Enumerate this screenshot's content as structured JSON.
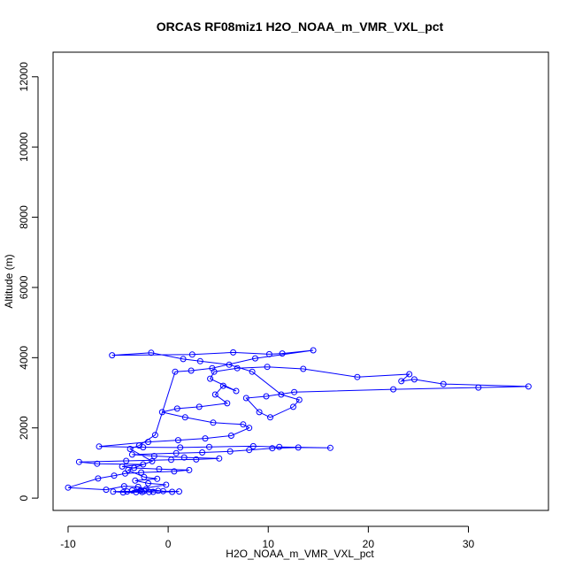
{
  "chart_data": {
    "type": "scatter",
    "title": "ORCAS RF08miz1 H2O_NOAA_m_VMR_VXL_pct",
    "xlabel": "H2O_NOAA_m_VMR_VXL_pct",
    "ylabel": "Altitude (m)",
    "xlim": [
      -11.5,
      38
    ],
    "ylim": [
      -350,
      12700
    ],
    "xticks": [
      -10,
      0,
      10,
      20,
      30
    ],
    "yticks": [
      0,
      2000,
      4000,
      6000,
      8000,
      10000,
      12000
    ],
    "grid": false,
    "colors": {
      "series": "#0000ff",
      "axes": "#000000"
    },
    "series": [
      {
        "marker": "open-circle",
        "connected": true,
        "points": [
          [
            -1.5,
            180
          ],
          [
            -3.2,
            170
          ],
          [
            -2.4,
            200
          ],
          [
            -4.1,
            190
          ],
          [
            -2.8,
            210
          ],
          [
            -3.6,
            220
          ],
          [
            -1.9,
            175
          ],
          [
            0.4,
            180
          ],
          [
            1.1,
            190
          ],
          [
            -0.5,
            200
          ],
          [
            -2.2,
            260
          ],
          [
            -3.0,
            320
          ],
          [
            -4.4,
            340
          ],
          [
            -6.2,
            240
          ],
          [
            -10.0,
            300
          ],
          [
            -7.0,
            560
          ],
          [
            -5.4,
            640
          ],
          [
            -4.3,
            700
          ],
          [
            -2.7,
            730
          ],
          [
            0.6,
            760
          ],
          [
            2.1,
            800
          ],
          [
            -0.9,
            830
          ],
          [
            -3.4,
            860
          ],
          [
            -4.6,
            900
          ],
          [
            -2.5,
            960
          ],
          [
            -7.1,
            980
          ],
          [
            -8.9,
            1030
          ],
          [
            -4.2,
            1060
          ],
          [
            0.3,
            1090
          ],
          [
            2.8,
            1100
          ],
          [
            5.1,
            1130
          ],
          [
            1.6,
            1160
          ],
          [
            -1.4,
            1200
          ],
          [
            -3.6,
            1240
          ],
          [
            0.8,
            1280
          ],
          [
            3.4,
            1300
          ],
          [
            6.2,
            1330
          ],
          [
            8.1,
            1370
          ],
          [
            10.4,
            1420
          ],
          [
            13.0,
            1440
          ],
          [
            16.2,
            1430
          ],
          [
            11.1,
            1460
          ],
          [
            8.5,
            1480
          ],
          [
            4.1,
            1460
          ],
          [
            1.2,
            1440
          ],
          [
            -2.5,
            1450
          ],
          [
            -6.9,
            1470
          ],
          [
            -2.0,
            1600
          ],
          [
            1.0,
            1650
          ],
          [
            3.7,
            1700
          ],
          [
            6.3,
            1780
          ],
          [
            8.1,
            2000
          ],
          [
            7.5,
            2100
          ],
          [
            4.5,
            2150
          ],
          [
            1.7,
            2300
          ],
          [
            -0.6,
            2450
          ],
          [
            0.9,
            2550
          ],
          [
            3.1,
            2600
          ],
          [
            5.9,
            2700
          ],
          [
            4.7,
            2950
          ],
          [
            5.5,
            3200
          ],
          [
            6.8,
            3050
          ],
          [
            4.2,
            3400
          ],
          [
            4.6,
            3600
          ],
          [
            6.9,
            3700
          ],
          [
            9.9,
            3740
          ],
          [
            13.5,
            3680
          ],
          [
            18.9,
            3450
          ],
          [
            24.1,
            3530
          ],
          [
            23.3,
            3330
          ],
          [
            24.6,
            3380
          ],
          [
            27.5,
            3250
          ],
          [
            36.0,
            3180
          ],
          [
            31.0,
            3150
          ],
          [
            22.5,
            3100
          ],
          [
            12.6,
            3020
          ],
          [
            9.8,
            2900
          ],
          [
            7.8,
            2850
          ],
          [
            9.1,
            2450
          ],
          [
            10.2,
            2300
          ],
          [
            12.5,
            2600
          ],
          [
            13.1,
            2800
          ],
          [
            11.3,
            2950
          ],
          [
            8.4,
            3600
          ],
          [
            6.1,
            3800
          ],
          [
            3.2,
            3900
          ],
          [
            1.5,
            3960
          ],
          [
            -1.7,
            4140
          ],
          [
            -5.6,
            4070
          ],
          [
            2.4,
            4090
          ],
          [
            6.5,
            4150
          ],
          [
            10.1,
            4100
          ],
          [
            11.4,
            4120
          ],
          [
            14.5,
            4210
          ],
          [
            8.7,
            3980
          ],
          [
            4.4,
            3700
          ],
          [
            2.3,
            3630
          ],
          [
            0.7,
            3600
          ],
          [
            -1.3,
            1800
          ],
          [
            -2.9,
            1500
          ],
          [
            -3.8,
            1400
          ],
          [
            -1.6,
            1050
          ],
          [
            -4.0,
            800
          ],
          [
            -2.4,
            600
          ],
          [
            -1.1,
            550
          ],
          [
            -3.3,
            500
          ],
          [
            -2.0,
            420
          ],
          [
            -0.2,
            380
          ],
          [
            -3.1,
            250
          ],
          [
            -2.6,
            175
          ],
          [
            -4.5,
            165
          ],
          [
            -5.5,
            185
          ],
          [
            -1.0,
            210
          ]
        ]
      }
    ]
  }
}
